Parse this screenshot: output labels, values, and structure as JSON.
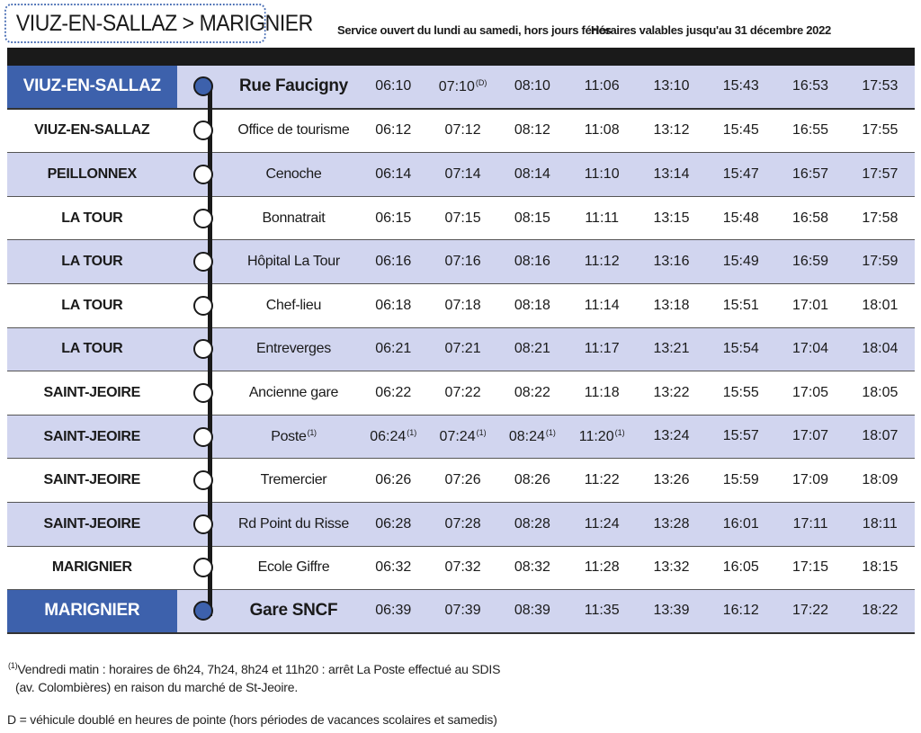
{
  "header": {
    "route": "VIUZ-EN-SALLAZ > MARIGNIER",
    "service_days": "Service ouvert du lundi au samedi, hors jours fériés",
    "validity": "Horaires valables jusqu'au 31 décembre 2022"
  },
  "colors": {
    "accent": "#3d61ac",
    "row_alt": "#d1d5ef"
  },
  "stops": [
    {
      "commune": "VIUZ-EN-SALLAZ",
      "name": "Rue Faucigny",
      "name_note": "",
      "times": [
        "06:10",
        "07:10",
        "08:10",
        "11:06",
        "13:10",
        "15:43",
        "16:53",
        "17:53"
      ],
      "notes": [
        "",
        "(D)",
        "",
        "",
        "",
        "",
        "",
        ""
      ]
    },
    {
      "commune": "VIUZ-EN-SALLAZ",
      "name": "Office de tourisme",
      "name_note": "",
      "times": [
        "06:12",
        "07:12",
        "08:12",
        "11:08",
        "13:12",
        "15:45",
        "16:55",
        "17:55"
      ],
      "notes": [
        "",
        "",
        "",
        "",
        "",
        "",
        "",
        ""
      ]
    },
    {
      "commune": "PEILLONNEX",
      "name": "Cenoche",
      "name_note": "",
      "times": [
        "06:14",
        "07:14",
        "08:14",
        "11:10",
        "13:14",
        "15:47",
        "16:57",
        "17:57"
      ],
      "notes": [
        "",
        "",
        "",
        "",
        "",
        "",
        "",
        ""
      ]
    },
    {
      "commune": "LA TOUR",
      "name": "Bonnatrait",
      "name_note": "",
      "times": [
        "06:15",
        "07:15",
        "08:15",
        "11:11",
        "13:15",
        "15:48",
        "16:58",
        "17:58"
      ],
      "notes": [
        "",
        "",
        "",
        "",
        "",
        "",
        "",
        ""
      ]
    },
    {
      "commune": "LA TOUR",
      "name": "Hôpital La Tour",
      "name_note": "",
      "times": [
        "06:16",
        "07:16",
        "08:16",
        "11:12",
        "13:16",
        "15:49",
        "16:59",
        "17:59"
      ],
      "notes": [
        "",
        "",
        "",
        "",
        "",
        "",
        "",
        ""
      ]
    },
    {
      "commune": "LA TOUR",
      "name": "Chef-lieu",
      "name_note": "",
      "times": [
        "06:18",
        "07:18",
        "08:18",
        "11:14",
        "13:18",
        "15:51",
        "17:01",
        "18:01"
      ],
      "notes": [
        "",
        "",
        "",
        "",
        "",
        "",
        "",
        ""
      ]
    },
    {
      "commune": "LA TOUR",
      "name": "Entreverges",
      "name_note": "",
      "times": [
        "06:21",
        "07:21",
        "08:21",
        "11:17",
        "13:21",
        "15:54",
        "17:04",
        "18:04"
      ],
      "notes": [
        "",
        "",
        "",
        "",
        "",
        "",
        "",
        ""
      ]
    },
    {
      "commune": "SAINT-JEOIRE",
      "name": "Ancienne gare",
      "name_note": "",
      "times": [
        "06:22",
        "07:22",
        "08:22",
        "11:18",
        "13:22",
        "15:55",
        "17:05",
        "18:05"
      ],
      "notes": [
        "",
        "",
        "",
        "",
        "",
        "",
        "",
        ""
      ]
    },
    {
      "commune": "SAINT-JEOIRE",
      "name": "Poste",
      "name_note": "(1)",
      "times": [
        "06:24",
        "07:24",
        "08:24",
        "11:20",
        "13:24",
        "15:57",
        "17:07",
        "18:07"
      ],
      "notes": [
        "(1)",
        "(1)",
        "(1)",
        "(1)",
        "",
        "",
        "",
        ""
      ]
    },
    {
      "commune": "SAINT-JEOIRE",
      "name": "Tremercier",
      "name_note": "",
      "times": [
        "06:26",
        "07:26",
        "08:26",
        "11:22",
        "13:26",
        "15:59",
        "17:09",
        "18:09"
      ],
      "notes": [
        "",
        "",
        "",
        "",
        "",
        "",
        "",
        ""
      ]
    },
    {
      "commune": "SAINT-JEOIRE",
      "name": "Rd Point du Risse",
      "name_note": "",
      "times": [
        "06:28",
        "07:28",
        "08:28",
        "11:24",
        "13:28",
        "16:01",
        "17:11",
        "18:11"
      ],
      "notes": [
        "",
        "",
        "",
        "",
        "",
        "",
        "",
        ""
      ]
    },
    {
      "commune": "MARIGNIER",
      "name": "Ecole Giffre",
      "name_note": "",
      "times": [
        "06:32",
        "07:32",
        "08:32",
        "11:28",
        "13:32",
        "16:05",
        "17:15",
        "18:15"
      ],
      "notes": [
        "",
        "",
        "",
        "",
        "",
        "",
        "",
        ""
      ]
    },
    {
      "commune": "MARIGNIER",
      "name": "Gare SNCF",
      "name_note": "",
      "times": [
        "06:39",
        "07:39",
        "08:39",
        "11:35",
        "13:39",
        "16:12",
        "17:22",
        "18:22"
      ],
      "notes": [
        "",
        "",
        "",
        "",
        "",
        "",
        "",
        ""
      ]
    }
  ],
  "footnotes": {
    "note1_marker": "(1)",
    "note1_line1": "Vendredi matin : horaires de 6h24, 7h24, 8h24 et 11h20 : arrêt La Poste effectué au SDIS",
    "note1_line2": "(av. Colombières) en raison du marché de St-Jeoire.",
    "note2": "D = véhicule doublé en heures de pointe (hors périodes de vacances scolaires et samedis)"
  }
}
